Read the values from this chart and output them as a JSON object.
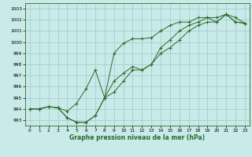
{
  "xlabel": "Graphe pression niveau de la mer (hPa)",
  "hours": [
    0,
    1,
    2,
    3,
    4,
    5,
    6,
    7,
    8,
    9,
    10,
    11,
    12,
    13,
    14,
    15,
    16,
    17,
    18,
    19,
    20,
    21,
    22,
    23
  ],
  "line1": [
    994.0,
    994.0,
    994.2,
    994.1,
    993.2,
    992.8,
    992.8,
    993.4,
    995.0,
    999.0,
    999.9,
    1000.3,
    1000.3,
    1000.4,
    1001.0,
    1001.5,
    1001.8,
    1001.8,
    1002.2,
    1002.2,
    1001.8,
    1002.5,
    1001.8,
    1001.7
  ],
  "line2": [
    994.0,
    994.0,
    994.2,
    994.1,
    993.8,
    994.5,
    995.8,
    997.5,
    995.0,
    995.5,
    996.5,
    997.5,
    997.5,
    998.0,
    999.0,
    999.5,
    1000.2,
    1001.0,
    1001.5,
    1001.8,
    1001.8,
    1002.5,
    1001.8,
    1001.7
  ],
  "line3": [
    994.0,
    994.0,
    994.2,
    994.1,
    993.2,
    992.8,
    992.8,
    993.4,
    995.0,
    996.5,
    997.2,
    997.8,
    997.5,
    998.0,
    999.5,
    1000.2,
    1001.0,
    1001.5,
    1001.8,
    1002.2,
    1002.2,
    1002.5,
    1002.2,
    1001.7
  ],
  "line_color": "#2d6a2d",
  "bg_color": "#c8eae8",
  "grid_color": "#a0c8c8",
  "ylim": [
    992.5,
    1003.5
  ],
  "xlim": [
    -0.5,
    23.5
  ],
  "yticks": [
    993,
    994,
    995,
    996,
    997,
    998,
    999,
    1000,
    1001,
    1002,
    1003
  ],
  "xticks": [
    0,
    1,
    2,
    3,
    4,
    5,
    6,
    7,
    8,
    9,
    10,
    11,
    12,
    13,
    14,
    15,
    16,
    17,
    18,
    19,
    20,
    21,
    22,
    23
  ],
  "xlabel_fontsize": 5.5,
  "tick_fontsize": 4.2
}
